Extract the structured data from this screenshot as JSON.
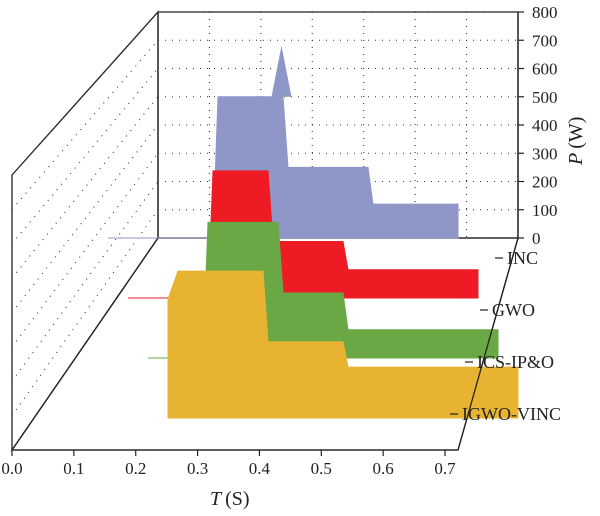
{
  "chart_data": {
    "type": "area",
    "style": "3d-waterfall",
    "xlabel": {
      "symbol": "T",
      "unit": "(S)"
    },
    "zlabel": {
      "symbol": "P",
      "unit": "(W)"
    },
    "x_ticks": [
      "0.0",
      "0.1",
      "0.2",
      "0.3",
      "0.4",
      "0.5",
      "0.6",
      "0.7"
    ],
    "z_ticks": [
      "0",
      "100",
      "200",
      "300",
      "400",
      "500",
      "600",
      "700",
      "800"
    ],
    "xlim": [
      0,
      0.7
    ],
    "zlim": [
      0,
      800
    ],
    "grid": true,
    "series": [
      {
        "name": "INC",
        "color": "#8f97c9",
        "points": [
          [
            0.0,
            0
          ],
          [
            0.21,
            0
          ],
          [
            0.22,
            500
          ],
          [
            0.35,
            500
          ],
          [
            0.36,
            250
          ],
          [
            0.52,
            250
          ],
          [
            0.53,
            120
          ],
          [
            0.7,
            120
          ]
        ],
        "peak": {
          "x": 0.355,
          "y": 680
        }
      },
      {
        "name": "GWO",
        "color": "#ee1b24",
        "points": [
          [
            0.0,
            0
          ],
          [
            0.16,
            0
          ],
          [
            0.17,
            450
          ],
          [
            0.28,
            450
          ],
          [
            0.29,
            200
          ],
          [
            0.43,
            200
          ],
          [
            0.44,
            100
          ],
          [
            0.7,
            100
          ]
        ]
      },
      {
        "name": "ICS-IP&O",
        "color": "#6aa845",
        "points": [
          [
            0.0,
            0
          ],
          [
            0.11,
            0
          ],
          [
            0.12,
            480
          ],
          [
            0.26,
            480
          ],
          [
            0.27,
            230
          ],
          [
            0.39,
            230
          ],
          [
            0.4,
            100
          ],
          [
            0.7,
            100
          ]
        ]
      },
      {
        "name": "IGWO-VINC",
        "color": "#e8b330",
        "points": [
          [
            0.0,
            420
          ],
          [
            0.02,
            520
          ],
          [
            0.19,
            520
          ],
          [
            0.2,
            270
          ],
          [
            0.35,
            270
          ],
          [
            0.36,
            180
          ],
          [
            0.7,
            180
          ]
        ]
      }
    ]
  }
}
